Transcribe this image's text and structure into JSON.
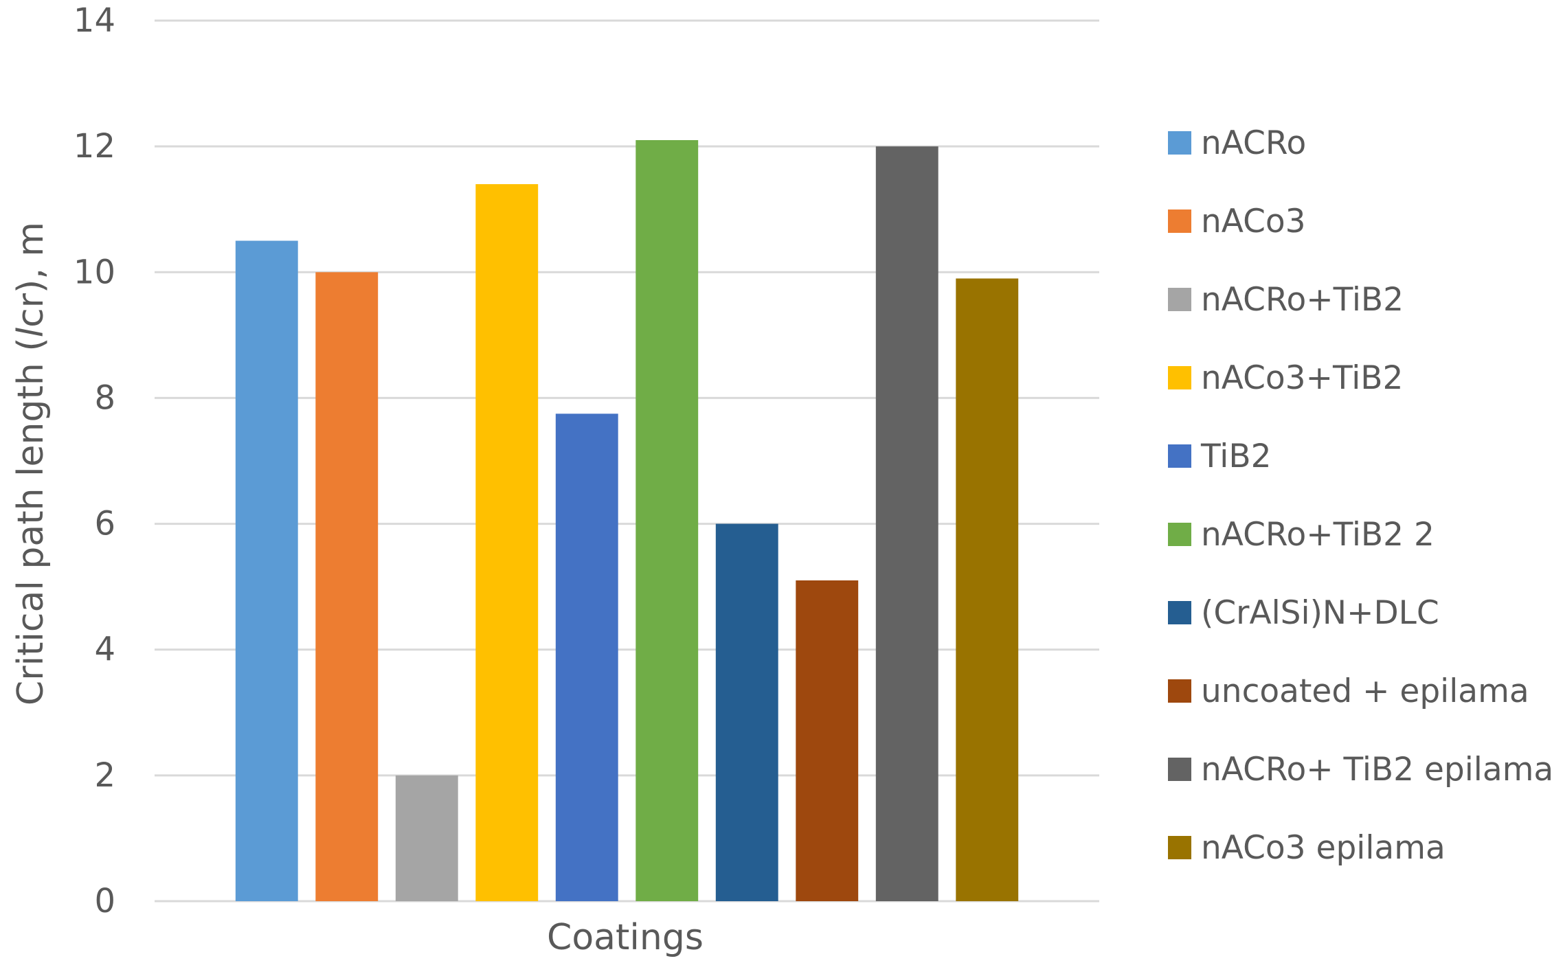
{
  "chart_data": {
    "type": "bar",
    "title": "",
    "xlabel": "Coatings",
    "ylabel_prefix": "Critical path length (",
    "ylabel_italic": "l",
    "ylabel_suffix": "cr), m",
    "ylim": [
      0,
      14
    ],
    "yticks": [
      0,
      2,
      4,
      6,
      8,
      10,
      12,
      14
    ],
    "grid": true,
    "legend_position": "right",
    "categories": [
      "Coatings"
    ],
    "series": [
      {
        "name": "nACRo",
        "value": 10.5,
        "color": "#5B9BD5"
      },
      {
        "name": "nACo3",
        "value": 10.0,
        "color": "#ED7D31"
      },
      {
        "name": "nACRo+TiB2",
        "value": 2.0,
        "color": "#A5A5A5"
      },
      {
        "name": "nACo3+TiB2",
        "value": 11.4,
        "color": "#FFC000"
      },
      {
        "name": "TiB2",
        "value": 7.75,
        "color": "#4472C4"
      },
      {
        "name": "nACRo+TiB2 2",
        "value": 12.1,
        "color": "#70AD47"
      },
      {
        "name": "(CrAlSi)N+DLC",
        "value": 6.0,
        "color": "#255E91"
      },
      {
        "name": "uncoated + epilama",
        "value": 5.1,
        "color": "#9E480E"
      },
      {
        "name": "nACRo+ TiB2 epilama",
        "value": 12.0,
        "color": "#636363"
      },
      {
        "name": "nACo3 epilama",
        "value": 9.9,
        "color": "#997300"
      }
    ]
  }
}
